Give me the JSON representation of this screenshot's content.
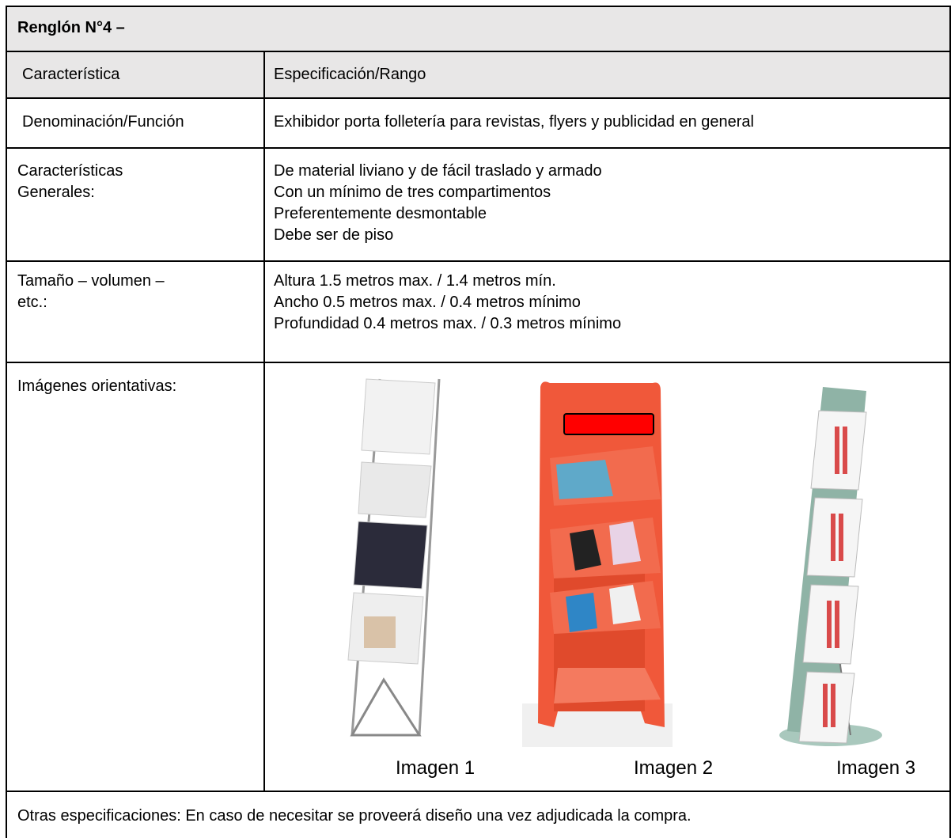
{
  "header": {
    "title": "Renglón N°4 –"
  },
  "table": {
    "columns": [
      "Característica",
      "Especificación/Rango"
    ],
    "rows": [
      {
        "label": [
          "Denominación/Función"
        ],
        "spec": [
          "Exhibidor porta folletería para revistas, flyers y publicidad en general"
        ]
      },
      {
        "label": [
          "Características",
          "Generales:"
        ],
        "spec": [
          "De material liviano y de fácil traslado y armado",
          "Con un mínimo de tres compartimentos",
          "Preferentemente desmontable",
          "Debe ser de piso"
        ]
      },
      {
        "label": [
          "Tamaño – volumen –",
          "etc.:"
        ],
        "spec": [
          "Altura 1.5 metros max. / 1.4 metros mín.",
          "Ancho 0.5 metros max. / 0.4 metros mínimo",
          "Profundidad 0.4 metros max. / 0.3 metros mínimo"
        ]
      },
      {
        "label": [
          "Imágenes orientativas:"
        ],
        "captions": [
          "Imagen 1",
          "Imagen 2",
          "Imagen 3"
        ]
      }
    ]
  },
  "footer": {
    "text": "Otras especificaciones: En caso de necesitar se proveerá diseño una vez adjudicada la compra."
  }
}
